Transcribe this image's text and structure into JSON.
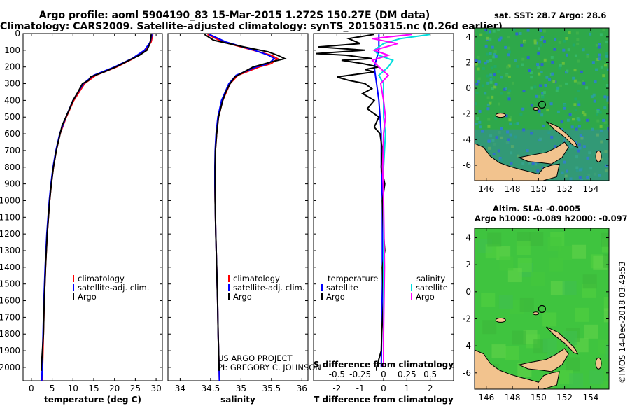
{
  "header": {
    "title_line1": "Argo profile: aoml 5904190_83 15-Mar-2015 1.272S 150.27E (DM data)",
    "title_line2": "Climatology: CARS2009. Satellite-adjusted climatology: synTS_20150315.nc (0.26d earlier)"
  },
  "maps": {
    "sst_title": "sat. SST: 28.7 Argo: 28.6",
    "sla_title_line1": "Altim. SLA: -0.0005",
    "sla_title_line2": "Argo h1000: -0.089 h2000: -0.097",
    "lon_ticks": [
      "146",
      "148",
      "150",
      "152",
      "154"
    ],
    "lat_ticks": [
      "4",
      "2",
      "0",
      "-2",
      "-4",
      "-6"
    ],
    "argo_lon": 150.27,
    "argo_lat": -1.272,
    "colors": {
      "ocean_sst": "#2ea84a",
      "land": "#f0c89a",
      "ocean_sla": "#3fc43f"
    }
  },
  "depth_ticks": [
    "0",
    "100",
    "200",
    "300",
    "400",
    "500",
    "600",
    "700",
    "800",
    "900",
    "1000",
    "1100",
    "1200",
    "1300",
    "1400",
    "1500",
    "1600",
    "1700",
    "1800",
    "1900",
    "2000"
  ],
  "credits": {
    "project": "US ARGO PROJECT",
    "pi": "PI: GREGORY C. JOHNSON",
    "imos": "©IMOS 14-Dec-2018 03:49:53"
  },
  "chart_data": [
    {
      "type": "line",
      "title": "",
      "xlabel": "temperature (deg C)",
      "ylabel": "depth",
      "xlim": [
        -2,
        31.5
      ],
      "ylim": [
        2080,
        0
      ],
      "xticks": [
        "0",
        "5",
        "10",
        "15",
        "20",
        "25",
        "30"
      ],
      "legend": [
        "climatology",
        "satellite-adj. clim.",
        "Argo"
      ],
      "legend_position": "lower-center",
      "series": [
        {
          "name": "climatology",
          "color": "#ff0000",
          "depth": [
            5,
            50,
            100,
            150,
            200,
            250,
            300,
            400,
            500,
            600,
            700,
            800,
            900,
            1000,
            1200,
            1400,
            1600,
            1800,
            2000,
            2080
          ],
          "values": [
            29.2,
            28.8,
            27.5,
            24.5,
            20.5,
            15.5,
            12.8,
            10.2,
            8.4,
            6.9,
            6.0,
            5.3,
            4.8,
            4.4,
            3.8,
            3.4,
            3.1,
            2.9,
            2.7,
            2.6
          ]
        },
        {
          "name": "satellite-adj. clim.",
          "color": "#0000ff",
          "depth": [
            5,
            50,
            100,
            150,
            200,
            250,
            300,
            400,
            500,
            600,
            700,
            800,
            900,
            1000,
            1200,
            1400,
            1600,
            1800,
            2000,
            2080
          ],
          "values": [
            29.0,
            28.6,
            27.2,
            24.2,
            20.0,
            15.0,
            12.5,
            10.0,
            8.3,
            6.8,
            5.9,
            5.2,
            4.7,
            4.3,
            3.7,
            3.3,
            3.0,
            2.8,
            2.6,
            2.5
          ]
        },
        {
          "name": "Argo",
          "color": "#000000",
          "depth": [
            5,
            30,
            60,
            100,
            130,
            160,
            200,
            230,
            260,
            280,
            300,
            350,
            400,
            450,
            500,
            550,
            600,
            700,
            800,
            900,
            1000,
            1200,
            1400,
            1600,
            1800,
            2000,
            2020
          ],
          "values": [
            28.8,
            28.7,
            28.5,
            27.8,
            26.0,
            23.5,
            20.3,
            17.5,
            14.2,
            13.8,
            12.3,
            11.2,
            10.0,
            9.2,
            8.3,
            7.4,
            6.9,
            6.0,
            5.3,
            4.8,
            4.4,
            3.8,
            3.4,
            3.1,
            2.9,
            2.4,
            2.4
          ]
        }
      ]
    },
    {
      "type": "line",
      "title": "",
      "xlabel": "salinity",
      "ylabel": "depth",
      "xlim": [
        33.8,
        36.1
      ],
      "ylim": [
        2080,
        0
      ],
      "xticks": [
        "34",
        "34.5",
        "35",
        "35.5",
        "36"
      ],
      "legend": [
        "climatology",
        "satellite-adj. clim.",
        "Argo"
      ],
      "legend_position": "lower-right",
      "series": [
        {
          "name": "climatology",
          "color": "#ff0000",
          "depth": [
            5,
            50,
            100,
            130,
            150,
            180,
            200,
            250,
            300,
            400,
            500,
            600,
            700,
            800,
            900,
            1000,
            1200,
            1400,
            1600,
            1800,
            2000,
            2080
          ],
          "values": [
            34.45,
            34.7,
            35.2,
            35.5,
            35.6,
            35.5,
            35.3,
            34.95,
            34.82,
            34.7,
            34.63,
            34.6,
            34.58,
            34.575,
            34.57,
            34.575,
            34.585,
            34.6,
            34.615,
            34.625,
            34.64,
            34.645
          ]
        },
        {
          "name": "satellite-adj. clim.",
          "color": "#0000ff",
          "depth": [
            5,
            50,
            100,
            130,
            150,
            180,
            200,
            250,
            300,
            400,
            500,
            600,
            700,
            800,
            900,
            1000,
            1200,
            1400,
            1600,
            1800,
            2000,
            2080
          ],
          "values": [
            34.48,
            34.75,
            35.22,
            35.45,
            35.55,
            35.45,
            35.25,
            34.92,
            34.8,
            34.68,
            34.62,
            34.59,
            34.575,
            34.57,
            34.57,
            34.575,
            34.585,
            34.6,
            34.615,
            34.625,
            34.64,
            34.645
          ]
        },
        {
          "name": "Argo",
          "color": "#000000",
          "depth": [
            5,
            40,
            80,
            110,
            130,
            150,
            170,
            200,
            230,
            260,
            300,
            350,
            400,
            500,
            600,
            700,
            800,
            1000,
            1200,
            1400,
            1600,
            1800,
            2000,
            2020
          ],
          "values": [
            34.4,
            34.55,
            35.05,
            35.45,
            35.6,
            35.72,
            35.5,
            35.2,
            35.05,
            34.9,
            34.82,
            34.75,
            34.7,
            34.63,
            34.6,
            34.58,
            34.575,
            34.575,
            34.585,
            34.6,
            34.615,
            34.625,
            34.64,
            34.64
          ]
        }
      ]
    },
    {
      "type": "line",
      "title": "",
      "xlabel": "T difference from climatology",
      "xlabel_top": "S difference from climatology",
      "ylabel": "depth",
      "xlim": [
        -3,
        3
      ],
      "ylim": [
        2080,
        0
      ],
      "xticks": [
        "-2",
        "-1",
        "0",
        "1",
        "2"
      ],
      "xticks_top": [
        "-0.5",
        "-0.25",
        "0",
        "0.25",
        "0.5"
      ],
      "legend_temperature": [
        "satellite",
        "Argo"
      ],
      "legend_salinity": [
        "satellite",
        "Argo"
      ],
      "series": [
        {
          "name": "temperature satellite",
          "color": "#0000ff",
          "depth": [
            5,
            100,
            200,
            300,
            400,
            600,
            800,
            1000,
            1500,
            2000
          ],
          "values": [
            -0.2,
            -0.2,
            -0.4,
            -0.3,
            -0.2,
            -0.1,
            -0.1,
            -0.05,
            -0.05,
            -0.1
          ]
        },
        {
          "name": "temperature Argo",
          "color": "#000000",
          "depth": [
            5,
            30,
            60,
            80,
            100,
            120,
            130,
            150,
            160,
            180,
            200,
            215,
            230,
            260,
            280,
            300,
            330,
            360,
            400,
            450,
            500,
            560,
            600,
            700,
            800,
            900,
            1000,
            1200,
            1300,
            1400,
            1600,
            1800,
            1900,
            2000,
            2020
          ],
          "values": [
            -0.4,
            -1.5,
            -1.0,
            -2.8,
            -0.8,
            -2.9,
            -1.6,
            -0.5,
            -1.8,
            -0.9,
            -0.2,
            -0.8,
            -0.4,
            -2.0,
            -1.5,
            -0.8,
            -0.5,
            -0.9,
            -0.4,
            -0.7,
            -0.2,
            -0.4,
            -0.15,
            -0.05,
            -0.1,
            0.05,
            -0.05,
            0.0,
            0.05,
            -0.05,
            0.0,
            -0.08,
            -0.1,
            -0.3,
            -0.3
          ]
        },
        {
          "name": "salinity satellite",
          "color": "#00dddd",
          "depth": [
            5,
            30,
            60,
            100,
            130,
            160,
            200,
            250,
            300,
            400,
            500,
            600,
            800,
            1000,
            1400,
            1800,
            2000
          ],
          "values": [
            0.5,
            0.18,
            0.0,
            -0.1,
            -0.05,
            0.1,
            0.05,
            -0.05,
            0.0,
            0.0,
            0.0,
            0.02,
            0.0,
            0.0,
            0.0,
            0.0,
            0.0
          ]
        },
        {
          "name": "salinity Argo",
          "color": "#ff00ff",
          "depth": [
            5,
            30,
            60,
            100,
            130,
            160,
            200,
            250,
            300,
            400,
            500,
            600,
            800,
            1000,
            1400,
            1800,
            2000
          ],
          "values": [
            0.3,
            -0.12,
            0.15,
            -0.1,
            0.05,
            -0.12,
            -0.05,
            0.05,
            -0.03,
            0.0,
            0.02,
            0.0,
            -0.01,
            0.0,
            0.01,
            0.0,
            0.0
          ]
        }
      ]
    }
  ],
  "legend_headers": {
    "temperature": "temperature",
    "salinity": "salinity"
  }
}
